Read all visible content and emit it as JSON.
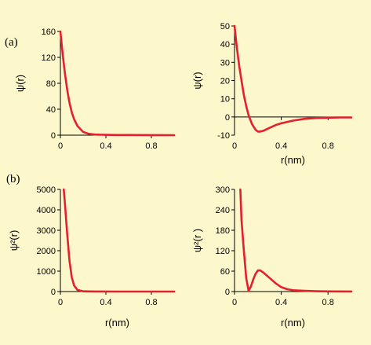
{
  "panel_labels": {
    "a": "(a)",
    "b": "(b)"
  },
  "colors": {
    "background": "#fdf7cc",
    "curve": "#e5202e",
    "axis": "#000000"
  },
  "chart_data": [
    {
      "id": "a-left",
      "type": "line",
      "ylabel": "ψ(r)",
      "xlabel": "",
      "xlim": [
        0,
        1
      ],
      "ylim": [
        0,
        160
      ],
      "xticks": [
        0,
        0.4,
        0.8
      ],
      "yticks": [
        0,
        40,
        80,
        120,
        160
      ],
      "x": [
        0,
        0.02,
        0.04,
        0.06,
        0.08,
        0.1,
        0.12,
        0.15,
        0.2,
        0.25,
        0.3,
        0.4,
        0.5,
        0.6,
        0.8,
        1.0
      ],
      "series": [
        {
          "values": [
            160,
            125,
            95,
            70,
            50,
            35,
            25,
            14,
            5,
            2,
            1,
            0.5,
            0.3,
            0.2,
            0.1,
            0
          ]
        }
      ]
    },
    {
      "id": "a-right",
      "type": "line",
      "ylabel": "ψ(r)",
      "xlabel": "r(nm)",
      "xlim": [
        0,
        1
      ],
      "ylim": [
        -10,
        50
      ],
      "xticks": [
        0,
        0.4,
        0.8
      ],
      "yticks": [
        -10,
        0,
        10,
        20,
        30,
        40,
        50
      ],
      "x": [
        0,
        0.02,
        0.04,
        0.06,
        0.08,
        0.1,
        0.12,
        0.15,
        0.18,
        0.2,
        0.22,
        0.25,
        0.3,
        0.35,
        0.4,
        0.5,
        0.6,
        0.7,
        0.8,
        0.9,
        1.0
      ],
      "series": [
        {
          "values": [
            50,
            38,
            28,
            20,
            12,
            6,
            1,
            -4,
            -7,
            -8,
            -8,
            -7.5,
            -6,
            -4.5,
            -3.5,
            -2,
            -1,
            -0.6,
            -0.4,
            -0.3,
            -0.3
          ]
        }
      ]
    },
    {
      "id": "b-left",
      "type": "line",
      "ylabel": "ψ²(r)",
      "xlabel": "r(nm)",
      "xlim": [
        0,
        1
      ],
      "ylim": [
        0,
        5000
      ],
      "xticks": [
        0,
        0.4,
        0.8
      ],
      "yticks": [
        0,
        1000,
        2000,
        3000,
        4000,
        5000
      ],
      "x": [
        0.03,
        0.04,
        0.06,
        0.08,
        0.1,
        0.12,
        0.15,
        0.2,
        0.3,
        0.5,
        0.8,
        1.0
      ],
      "series": [
        {
          "values": [
            5000,
            4300,
            2800,
            1500,
            700,
            300,
            80,
            10,
            2,
            0,
            0,
            0
          ]
        }
      ]
    },
    {
      "id": "b-right",
      "type": "line",
      "ylabel": "ψ²(r )",
      "xlabel": "r(nm)",
      "xlim": [
        0,
        1
      ],
      "ylim": [
        0,
        300
      ],
      "xticks": [
        0,
        0.4,
        0.8
      ],
      "yticks": [
        0,
        60,
        120,
        180,
        240,
        300
      ],
      "x": [
        0.05,
        0.06,
        0.08,
        0.1,
        0.12,
        0.14,
        0.16,
        0.18,
        0.2,
        0.22,
        0.25,
        0.3,
        0.35,
        0.4,
        0.45,
        0.5,
        0.6,
        0.7,
        0.8,
        1.0
      ],
      "series": [
        {
          "values": [
            300,
            210,
            120,
            40,
            2,
            15,
            35,
            52,
            62,
            62,
            55,
            40,
            25,
            13,
            7,
            4,
            2,
            1,
            0.5,
            0.3
          ]
        }
      ]
    }
  ]
}
